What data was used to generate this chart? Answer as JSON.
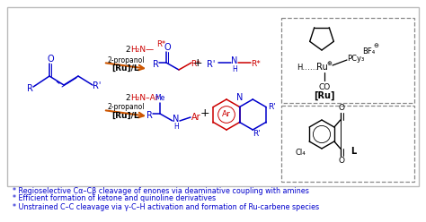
{
  "background_color": "#ffffff",
  "border_color": "#bbbbbb",
  "blue": "#0000cc",
  "red": "#cc0000",
  "black": "#000000",
  "orange": "#cc5500",
  "dashed_color": "#888888",
  "bullet_color": "#0000cc",
  "bullet_fontsize": 5.8,
  "bullet_lines": [
    "* Regioselective Cα–Cβ cleavage of enones via deaminative coupling with amines",
    "* Efficient formation of ketone and quinoline derivatives",
    "* Unstrained C–C cleavage via γ-C–H activation and formation of Ru-carbene species"
  ]
}
